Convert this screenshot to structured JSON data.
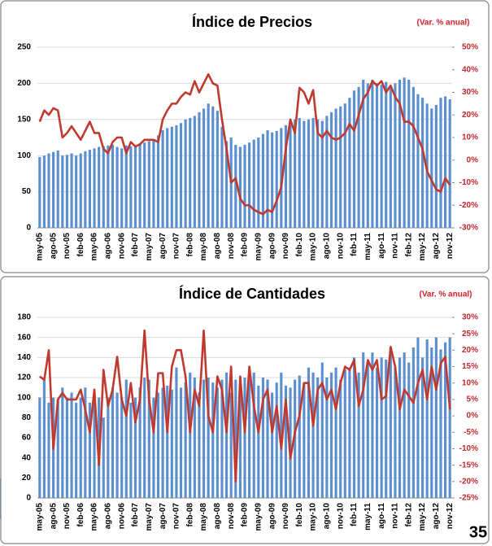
{
  "chart_data": [
    {
      "type": "bar-line",
      "title": "Índice de Precios",
      "subtitle": "(Var. % anual)",
      "categories": [
        "may-05",
        null,
        null,
        "ago-05",
        null,
        null,
        "nov-05",
        null,
        null,
        "feb-06",
        null,
        null,
        "may-06",
        null,
        null,
        "ago-06",
        null,
        null,
        "nov-06",
        null,
        null,
        "feb-07",
        null,
        null,
        "may-07",
        null,
        null,
        "ago-07",
        null,
        null,
        "nov-07",
        null,
        null,
        "feb-08",
        null,
        null,
        "may-08",
        null,
        null,
        "ago-08",
        null,
        null,
        "nov-08",
        null,
        null,
        "feb-09",
        null,
        null,
        "may-09",
        null,
        null,
        "ago-09",
        null,
        null,
        "nov-09",
        null,
        null,
        "feb-10",
        null,
        null,
        "may-10",
        null,
        null,
        "ago-10",
        null,
        null,
        "nov-10",
        null,
        null,
        "feb-11",
        null,
        null,
        "may-11",
        null,
        null,
        "ago-11",
        null,
        null,
        "nov-11",
        null,
        null,
        "feb-12",
        null,
        null,
        "may-12",
        null,
        null,
        "ago-12",
        null,
        null,
        "nov-12"
      ],
      "series": [
        {
          "color": "#5b8fd0",
          "values": [
            98,
            100,
            103,
            105,
            107,
            100,
            101,
            103,
            100,
            103,
            106,
            108,
            110,
            112,
            113,
            114,
            115,
            112,
            110,
            114,
            113,
            112,
            115,
            118,
            120,
            122,
            128,
            135,
            138,
            140,
            142,
            145,
            150,
            152,
            155,
            160,
            165,
            172,
            168,
            162,
            140,
            120,
            125,
            115,
            112,
            115,
            118,
            122,
            125,
            130,
            135,
            132,
            134,
            138,
            142,
            148,
            150,
            152,
            148,
            150,
            152,
            150,
            148,
            155,
            160,
            165,
            168,
            172,
            180,
            190,
            195,
            205,
            200,
            205,
            200,
            198,
            202,
            195,
            200,
            205,
            208,
            205,
            195,
            185,
            180,
            172,
            165,
            170,
            180,
            182,
            178
          ]
        },
        {
          "color": "#c0392f",
          "axis": "y2",
          "values": [
            17,
            22,
            20,
            23,
            22,
            10,
            12,
            15,
            12,
            9,
            13,
            17,
            12,
            12,
            5,
            3,
            8,
            10,
            10,
            3,
            8,
            6,
            7,
            9,
            9,
            9,
            8,
            18,
            22,
            25,
            25,
            28,
            30,
            29,
            35,
            30,
            34,
            38,
            34,
            33,
            18,
            5,
            -10,
            -8,
            -17,
            -20,
            -20,
            -22,
            -23,
            -24,
            -22,
            -23,
            -18,
            -12,
            5,
            18,
            12,
            32,
            30,
            25,
            31,
            12,
            10,
            13,
            10,
            9,
            10,
            12,
            16,
            13,
            20,
            27,
            30,
            35,
            33,
            35,
            30,
            33,
            28,
            25,
            17,
            17,
            15,
            10,
            5,
            -5,
            -9,
            -13,
            -14,
            -8,
            -11
          ]
        }
      ],
      "ylim": [
        0,
        250
      ],
      "yticks": [
        0,
        50,
        100,
        150,
        200,
        250
      ],
      "y2lim": [
        -30,
        50
      ],
      "y2ticks": [
        {
          "value": -30,
          "label": "-30%"
        },
        {
          "value": -20,
          "label": "-20%"
        },
        {
          "value": -10,
          "label": "-10%"
        },
        {
          "value": 0,
          "label": "0%"
        },
        {
          "value": 10,
          "label": "10%"
        },
        {
          "value": 20,
          "label": "20%"
        },
        {
          "value": 30,
          "label": "30%"
        },
        {
          "value": 40,
          "label": "40%"
        },
        {
          "value": 50,
          "label": "50%"
        }
      ],
      "grid": true
    },
    {
      "type": "bar-line",
      "title": "Índice de Cantidades",
      "subtitle": "(Var. % anual)",
      "categories": [
        "may-05",
        null,
        null,
        "ago-05",
        null,
        null,
        "nov-05",
        null,
        null,
        "feb-06",
        null,
        null,
        "may-06",
        null,
        null,
        "ago-06",
        null,
        null,
        "nov-06",
        null,
        null,
        "feb-07",
        null,
        null,
        "may-07",
        null,
        null,
        "ago-07",
        null,
        null,
        "nov-07",
        null,
        null,
        "feb-08",
        null,
        null,
        "may-08",
        null,
        null,
        "ago-08",
        null,
        null,
        "nov-08",
        null,
        null,
        "feb-09",
        null,
        null,
        "may-09",
        null,
        null,
        "ago-09",
        null,
        null,
        "nov-09",
        null,
        null,
        "feb-10",
        null,
        null,
        "may-10",
        null,
        null,
        "ago-10",
        null,
        null,
        "nov-10",
        null,
        null,
        "feb-11",
        null,
        null,
        "may-11",
        null,
        null,
        "ago-11",
        null,
        null,
        "nov-11",
        null,
        null,
        "feb-12",
        null,
        null,
        "may-12",
        null,
        null,
        "ago-12",
        null,
        null,
        "nov-12"
      ],
      "series": [
        {
          "color": "#5b8fd0",
          "values": [
            100,
            118,
            95,
            100,
            98,
            110,
            100,
            105,
            95,
            100,
            110,
            95,
            105,
            100,
            80,
            100,
            110,
            105,
            100,
            118,
            95,
            100,
            110,
            120,
            118,
            100,
            105,
            110,
            112,
            108,
            130,
            110,
            115,
            125,
            120,
            105,
            118,
            120,
            115,
            110,
            118,
            125,
            105,
            118,
            110,
            120,
            118,
            125,
            112,
            120,
            118,
            105,
            115,
            125,
            112,
            110,
            118,
            122,
            115,
            130,
            125,
            120,
            135,
            120,
            125,
            130,
            118,
            128,
            130,
            140,
            125,
            145,
            135,
            145,
            130,
            140,
            138,
            150,
            130,
            140,
            145,
            135,
            150,
            160,
            140,
            158,
            150,
            160,
            148,
            155,
            160
          ]
        },
        {
          "color": "#c0392f",
          "axis": "y2",
          "values": [
            12,
            11,
            20,
            -10,
            5,
            7,
            5,
            5,
            5,
            8,
            2,
            -5,
            8,
            -15,
            14,
            3,
            8,
            18,
            5,
            0,
            10,
            -2,
            5,
            26,
            5,
            -5,
            13,
            13,
            -5,
            15,
            20,
            20,
            12,
            -5,
            8,
            3,
            26,
            0,
            -5,
            12,
            8,
            -5,
            15,
            -20,
            12,
            -5,
            15,
            3,
            -5,
            5,
            8,
            -5,
            3,
            -10,
            5,
            -13,
            -5,
            0,
            10,
            10,
            -3,
            8,
            10,
            5,
            8,
            2,
            10,
            15,
            14,
            17,
            3,
            8,
            17,
            14,
            17,
            5,
            6,
            21,
            15,
            2,
            8,
            6,
            4,
            10,
            14,
            5,
            15,
            8,
            16,
            18,
            2
          ]
        }
      ],
      "ylim": [
        0,
        180
      ],
      "yticks": [
        0,
        20,
        40,
        60,
        80,
        100,
        120,
        140,
        160,
        180
      ],
      "y2lim": [
        -25,
        30
      ],
      "y2ticks": [
        {
          "value": -25,
          "label": "-25%"
        },
        {
          "value": -20,
          "label": "-20%"
        },
        {
          "value": -15,
          "label": "-15%"
        },
        {
          "value": -10,
          "label": "-10%"
        },
        {
          "value": -5,
          "label": "-5%"
        },
        {
          "value": 0,
          "label": "0%"
        },
        {
          "value": 5,
          "label": "5%"
        },
        {
          "value": 10,
          "label": "10%"
        },
        {
          "value": 15,
          "label": "15%"
        },
        {
          "value": 20,
          "label": "20%"
        },
        {
          "value": 25,
          "label": "25%"
        },
        {
          "value": 30,
          "label": "30%"
        }
      ],
      "grid": true
    }
  ],
  "page_number": "35"
}
